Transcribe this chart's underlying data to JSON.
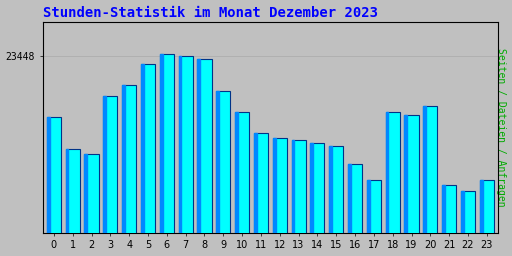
{
  "title": "Stunden-Statistik im Monat Dezember 2023",
  "ylabel": "Seiten / Dateien / Anfragen",
  "xlabel_values": [
    0,
    1,
    2,
    3,
    4,
    5,
    6,
    7,
    8,
    9,
    10,
    11,
    12,
    13,
    14,
    15,
    16,
    17,
    18,
    19,
    20,
    21,
    22,
    23
  ],
  "values": [
    23390,
    23360,
    23355,
    23410,
    23420,
    23440,
    23450,
    23448,
    23445,
    23415,
    23395,
    23375,
    23370,
    23368,
    23365,
    23362,
    23345,
    23330,
    23395,
    23392,
    23400,
    23325,
    23320,
    23330
  ],
  "ytick_label": "23448",
  "ytick_value": 23448,
  "ymin": 23280,
  "ymax": 23480,
  "bar_face_color": "#00FFFF",
  "bar_edge_color": "#003388",
  "bar_highlight_color": "#0088FF",
  "title_color": "#0000FF",
  "ylabel_color": "#00AA00",
  "bg_color": "#C0C0C0",
  "plot_bg_color": "#C0C0C0",
  "grid_color": "#AAAAAA",
  "tick_color": "#000000",
  "title_fontsize": 10,
  "axis_fontsize": 7,
  "ylabel_fontsize": 7
}
